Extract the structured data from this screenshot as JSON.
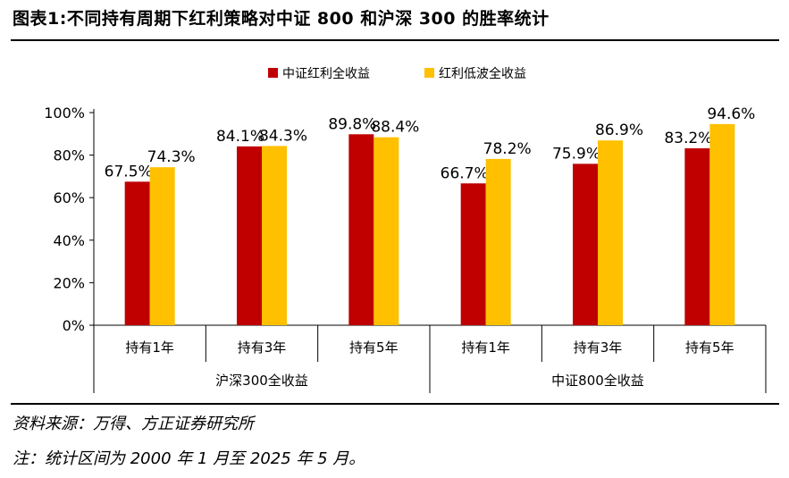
{
  "title": "图表1:不同持有周期下红利策略对中证 800 和沪深 300 的胜率统计",
  "source": "资料来源：万得、方正证券研究所",
  "note": "注：统计区间为 2000 年 1 月至 2025 年 5 月。",
  "colors": {
    "series1": "#C00000",
    "series2": "#FFC000"
  },
  "chart_data": {
    "type": "bar",
    "title": "",
    "xlabel": "",
    "ylabel": "",
    "ylim": [
      0,
      100
    ],
    "yticks": [
      "0%",
      "20%",
      "40%",
      "60%",
      "80%",
      "100%"
    ],
    "ytick_values": [
      0,
      20,
      40,
      60,
      80,
      100
    ],
    "legend_position": "top-center",
    "groups": [
      {
        "label": "沪深300全收益",
        "categories": [
          "持有1年",
          "持有3年",
          "持有5年"
        ]
      },
      {
        "label": "中证800全收益",
        "categories": [
          "持有1年",
          "持有3年",
          "持有5年"
        ]
      }
    ],
    "categories": [
      "持有1年",
      "持有3年",
      "持有5年",
      "持有1年",
      "持有3年",
      "持有5年"
    ],
    "series": [
      {
        "name": "中证红利全收益",
        "values": [
          67.5,
          84.1,
          89.8,
          66.7,
          75.9,
          83.2
        ],
        "labels": [
          "67.5%",
          "84.1%",
          "89.8%",
          "66.7%",
          "75.9%",
          "83.2%"
        ]
      },
      {
        "name": "红利低波全收益",
        "values": [
          74.3,
          84.3,
          88.4,
          78.2,
          86.9,
          94.6
        ],
        "labels": [
          "74.3%",
          "84.3%",
          "88.4%",
          "78.2%",
          "86.9%",
          "94.6%"
        ]
      }
    ]
  }
}
